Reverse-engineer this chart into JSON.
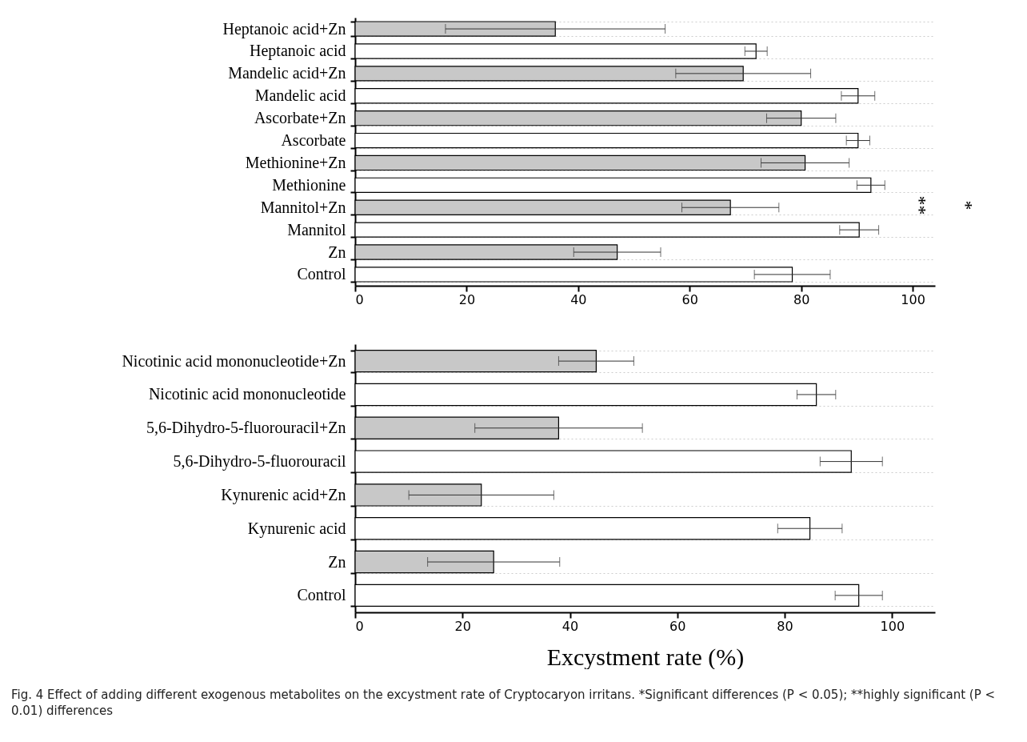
{
  "chart_data": [
    {
      "type": "bar",
      "orientation": "horizontal",
      "categories": [
        "Heptanoic acid+Zn",
        "Heptanoic acid",
        "Mandelic acid+Zn",
        "Mandelic acid",
        "Ascorbate+Zn",
        "Ascorbate",
        "Methionine+Zn",
        "Methionine",
        "Mannitol+Zn",
        "Mannitol",
        "Zn",
        "Control"
      ],
      "values": [
        35.9,
        71.9,
        69.6,
        90.2,
        80.0,
        90.2,
        80.7,
        92.5,
        67.3,
        90.4,
        47.0,
        78.4
      ],
      "errors": [
        19.7,
        2.0,
        12.1,
        3.0,
        6.2,
        2.1,
        7.9,
        2.5,
        8.7,
        3.5,
        7.8,
        6.8
      ],
      "colors": [
        "#c8c8c8",
        "#ffffff",
        "#c8c8c8",
        "#ffffff",
        "#c8c8c8",
        "#ffffff",
        "#c8c8c8",
        "#ffffff",
        "#c8c8c8",
        "#ffffff",
        "#c8c8c8",
        "#ffffff"
      ],
      "xlim": [
        0,
        104
      ],
      "xticks": [
        0,
        20,
        40,
        60,
        80,
        100
      ],
      "grid": "y",
      "annotations": [
        "**",
        "*"
      ]
    },
    {
      "type": "bar",
      "orientation": "horizontal",
      "categories": [
        "Nicotinic acid mononucleotide+Zn",
        "Nicotinic acid mononucleotide",
        "5,6-Dihydro-5-fluorouracil+Zn",
        "5,6-Dihydro-5-fluorouracil",
        "Kynurenic acid+Zn",
        "Kynurenic acid",
        "Zn",
        "Control"
      ],
      "values": [
        44.9,
        85.9,
        37.9,
        92.4,
        23.5,
        84.7,
        25.8,
        93.8
      ],
      "errors": [
        7.0,
        3.6,
        15.6,
        5.8,
        13.5,
        6.0,
        12.3,
        4.4
      ],
      "colors": [
        "#c8c8c8",
        "#ffffff",
        "#c8c8c8",
        "#ffffff",
        "#c8c8c8",
        "#ffffff",
        "#c8c8c8",
        "#ffffff"
      ],
      "xlim": [
        0,
        108
      ],
      "xticks": [
        0,
        20,
        40,
        60,
        80,
        100
      ],
      "grid": "y",
      "xlabel": "Excystment rate (%)",
      "annotations": [
        "Fig. 4 Effect of adding different exogenous metabolites on the excystment rate of Cryptocaryon irritans. *Significant differences (P < 0.05); **highly significant (P < 0.01) differences"
      ]
    }
  ]
}
